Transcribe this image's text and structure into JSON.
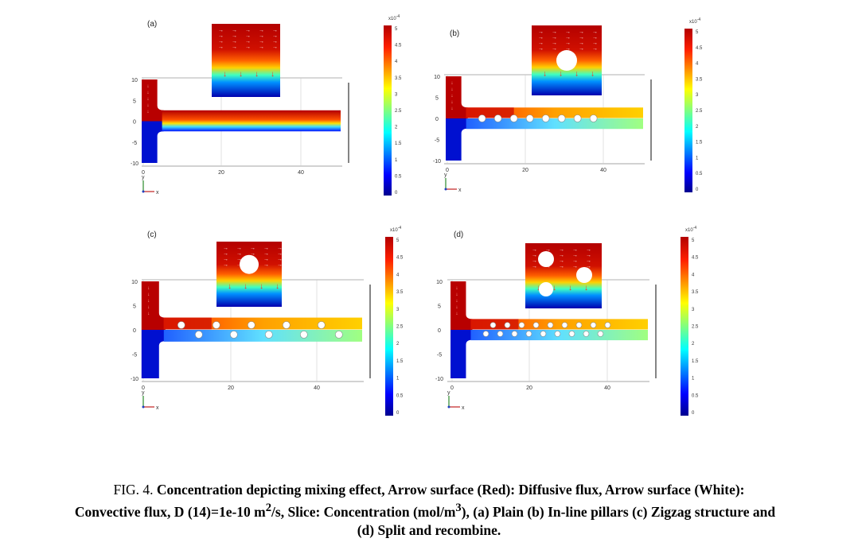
{
  "figure": {
    "panels": [
      {
        "label": "(a)",
        "type": "plain",
        "x_ticks": [
          "0",
          "20",
          "40"
        ],
        "y_ticks": [
          "10",
          "5",
          "0",
          "-5",
          "-10"
        ],
        "colorbar": {
          "exp": "x10",
          "exp_sup": "-4",
          "ticks": [
            "5",
            "4.5",
            "4",
            "3.5",
            "3",
            "2.5",
            "2",
            "1.5",
            "1",
            "0.5",
            "0"
          ]
        },
        "axes": {
          "y": "y",
          "x": "x",
          "z": "z"
        }
      },
      {
        "label": "(b)",
        "type": "inline",
        "x_ticks": [
          "0",
          "20",
          "40"
        ],
        "y_ticks": [
          "10",
          "5",
          "0",
          "-5",
          "-10"
        ],
        "colorbar": {
          "exp": "x10",
          "exp_sup": "-4",
          "ticks": [
            "5",
            "4.5",
            "4",
            "3.5",
            "3",
            "2.5",
            "2",
            "1.5",
            "1",
            "0.5",
            "0"
          ]
        },
        "axes": {
          "y": "y",
          "x": "x",
          "z": "z"
        }
      },
      {
        "label": "(c)",
        "type": "zigzag",
        "x_ticks": [
          "0",
          "20",
          "40"
        ],
        "y_ticks": [
          "10",
          "5",
          "0",
          "-5",
          "-10"
        ],
        "colorbar": {
          "exp": "x10",
          "exp_sup": "-4",
          "ticks": [
            "5",
            "4.5",
            "4",
            "3.5",
            "3",
            "2.5",
            "2",
            "1.5",
            "1",
            "0.5",
            "0"
          ]
        },
        "axes": {
          "y": "y",
          "x": "x",
          "z": "z"
        }
      },
      {
        "label": "(d)",
        "type": "split",
        "x_ticks": [
          "0",
          "20",
          "40"
        ],
        "y_ticks": [
          "10",
          "5",
          "0",
          "-5",
          "-10"
        ],
        "colorbar": {
          "exp": "x10",
          "exp_sup": "-4",
          "ticks": [
            "5",
            "4.5",
            "4",
            "3.5",
            "3",
            "2.5",
            "2",
            "1.5",
            "1",
            "0.5",
            "0"
          ]
        },
        "axes": {
          "y": "y",
          "x": "x",
          "z": "z"
        }
      }
    ]
  },
  "caption": {
    "prefix": "FIG. 4. ",
    "line1": "Concentration depicting mixing effect, Arrow surface (Red): Diffusive flux, Arrow surface (White):",
    "line2a": "Convective flux, D (14)=1e-10 m",
    "line2_sup1": "2",
    "line2b": "/s, Slice: Concentration (mol/m",
    "line2_sup2": "3",
    "line2c": "), (a) Plain (b) In-line pillars (c) Zigzag structure and",
    "line3": "(d) Split and recombine."
  },
  "colors": {
    "high": "#b30000",
    "mid": "#ffd000",
    "low": "#00008f"
  }
}
